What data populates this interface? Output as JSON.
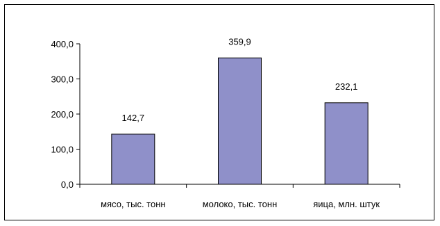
{
  "chart_data": {
    "type": "bar",
    "categories": [
      "мясо, тыс. тонн",
      "молоко, тыс. тонн",
      "яица, млн. штук"
    ],
    "values": [
      142.7,
      359.9,
      232.1
    ],
    "data_labels": [
      "142,7",
      "359,9",
      "232,1"
    ],
    "yticks": [
      0,
      100,
      200,
      300,
      400
    ],
    "ytick_labels": [
      "0,0",
      "100,0",
      "200,0",
      "300,0",
      "400,0"
    ],
    "ylim": [
      0,
      400
    ],
    "grid": false,
    "legend": "none",
    "colors": {
      "bar_fill": "#8f90c9",
      "bar_stroke": "#000000",
      "axis": "#000000"
    }
  }
}
